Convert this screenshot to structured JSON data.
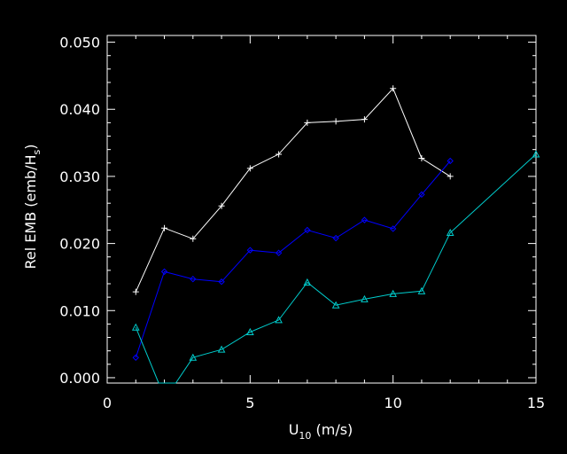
{
  "chart_data": {
    "type": "line",
    "xlabel": "U",
    "xlabel_sub": "10",
    "xlabel_tail": " (m/s)",
    "ylabel": "Rel EMB (emb/H",
    "ylabel_sub": "s",
    "ylabel_tail": ")",
    "xlim": [
      0,
      15
    ],
    "ylim": [
      -0.0008,
      0.051
    ],
    "xticks": [
      0,
      5,
      10,
      15
    ],
    "xtick_labels": [
      "0",
      "5",
      "10",
      "15"
    ],
    "yticks": [
      0.0,
      0.01,
      0.02,
      0.03,
      0.04,
      0.05
    ],
    "ytick_labels": [
      "0.000",
      "0.010",
      "0.020",
      "0.030",
      "0.040",
      "0.050"
    ],
    "grid": false,
    "colors": {
      "background": "#000000",
      "axes": "#ffffff"
    },
    "series": [
      {
        "marker": "plus",
        "color": "#ffffff",
        "x": [
          1,
          2,
          3,
          4,
          5,
          6,
          7,
          8,
          9,
          10,
          11,
          12
        ],
        "y": [
          0.0128,
          0.0223,
          0.0207,
          0.0256,
          0.0312,
          0.0333,
          0.038,
          0.0382,
          0.0385,
          0.0431,
          0.0327,
          0.03
        ]
      },
      {
        "marker": "diamond",
        "color": "#0000ff",
        "x": [
          1,
          2,
          3,
          4,
          5,
          6,
          7,
          8,
          9,
          10,
          11,
          12
        ],
        "y": [
          0.003,
          0.0158,
          0.0147,
          0.0143,
          0.019,
          0.0186,
          0.022,
          0.0208,
          0.0235,
          0.0222,
          0.0273,
          0.0323
        ]
      },
      {
        "marker": "triangle",
        "color": "#00cccc",
        "x": [
          1,
          1.8,
          2.4,
          3,
          4,
          5,
          6,
          7,
          8,
          9,
          10,
          11,
          12,
          15
        ],
        "y": [
          0.0075,
          -0.0008,
          -0.0008,
          0.003,
          0.0042,
          0.0068,
          0.0086,
          0.0142,
          0.0108,
          0.0117,
          0.0125,
          0.0129,
          0.0216,
          0.0333
        ],
        "markers_at": [
          0,
          3,
          4,
          5,
          6,
          7,
          8,
          9,
          10,
          11,
          12,
          13
        ]
      }
    ]
  }
}
